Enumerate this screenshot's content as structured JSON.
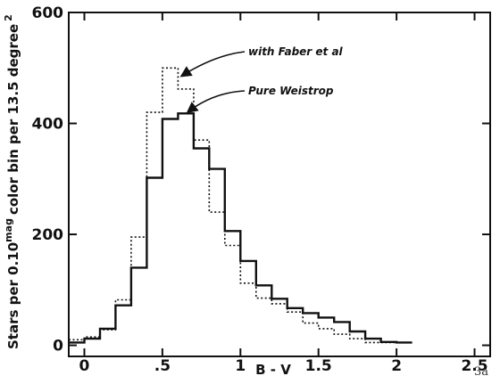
{
  "chart_data": {
    "type": "line",
    "xlabel": "B - V",
    "ylabel_prefix": "Stars per 0.10",
    "ylabel_sup": "mag",
    "ylabel_suffix": "color bin per 13.5 degree",
    "ylabel_sup2": "2",
    "xlim": [
      -0.1,
      2.6
    ],
    "ylim": [
      -20,
      600
    ],
    "x_ticks": [
      0,
      0.5,
      1.0,
      1.5,
      2.0,
      2.5
    ],
    "x_tick_labels": [
      "0",
      ".5",
      "1",
      "1.5",
      "2",
      "2.5"
    ],
    "y_ticks": [
      0,
      200,
      400,
      600
    ],
    "y_tick_labels": [
      "0",
      "200",
      "400",
      "600"
    ],
    "grid": false,
    "legend": "none",
    "bin_width": 0.1,
    "series": [
      {
        "name": "Pure Weistrop",
        "style": "solid",
        "bin_left_edges": [
          -0.1,
          0.0,
          0.1,
          0.2,
          0.3,
          0.4,
          0.5,
          0.6,
          0.7,
          0.8,
          0.9,
          1.0,
          1.1,
          1.2,
          1.3,
          1.4,
          1.5,
          1.6,
          1.7,
          1.8,
          1.9,
          2.0
        ],
        "values": [
          5,
          12,
          30,
          72,
          140,
          302,
          408,
          418,
          355,
          318,
          206,
          152,
          108,
          84,
          67,
          58,
          50,
          42,
          25,
          12,
          6,
          5
        ]
      },
      {
        "name": "with Faber et al",
        "style": "dotted",
        "bin_left_edges": [
          -0.1,
          0.0,
          0.1,
          0.2,
          0.3,
          0.4,
          0.5,
          0.6,
          0.7,
          0.8,
          0.9,
          1.0,
          1.1,
          1.2,
          1.3,
          1.4,
          1.5,
          1.6,
          1.7,
          1.8,
          1.9,
          2.0
        ],
        "values": [
          10,
          15,
          28,
          82,
          195,
          420,
          500,
          462,
          370,
          240,
          180,
          112,
          85,
          75,
          60,
          40,
          30,
          20,
          12,
          5,
          5,
          5
        ]
      }
    ],
    "annotations": [
      {
        "text": "with Faber et al",
        "arrow_to": {
          "x": 0.62,
          "y": 485
        }
      },
      {
        "text": "Pure Weistrop",
        "arrow_to": {
          "x": 0.66,
          "y": 420
        }
      }
    ],
    "corner_label": "3a"
  }
}
